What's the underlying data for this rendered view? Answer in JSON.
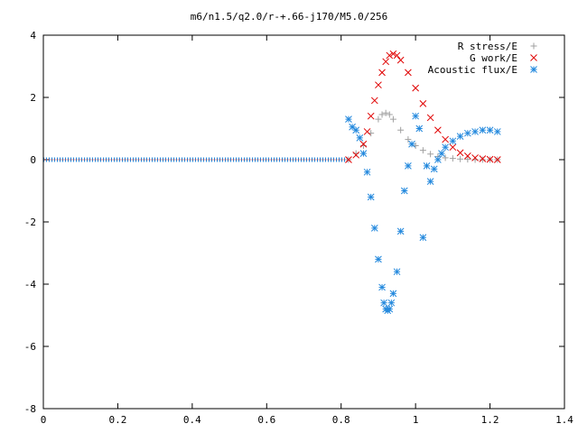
{
  "chart_data": {
    "type": "scatter",
    "title": "m6/n1.5/q2.0/r-+.66-j170/M5.0/256",
    "xlabel": "",
    "ylabel": "",
    "xlim": [
      0,
      1.4
    ],
    "ylim": [
      -8,
      4
    ],
    "xticks": [
      "0",
      "0.2",
      "0.4",
      "0.6",
      "0.8",
      "1",
      "1.2",
      "1.4"
    ],
    "yticks": [
      "-8",
      "-6",
      "-4",
      "-2",
      "0",
      "2",
      "4"
    ],
    "grid": false,
    "legend_position": "top-right",
    "series": [
      {
        "name": "R stress/E",
        "marker": "plus",
        "color": "#a0a0a0",
        "x": [
          0.82,
          0.84,
          0.86,
          0.88,
          0.9,
          0.91,
          0.92,
          0.93,
          0.94,
          0.96,
          0.98,
          1.0,
          1.02,
          1.04,
          1.06,
          1.08,
          1.1,
          1.12,
          1.14,
          1.16,
          1.18,
          1.2,
          1.22
        ],
        "y": [
          0.0,
          0.2,
          0.45,
          0.85,
          1.3,
          1.45,
          1.5,
          1.45,
          1.3,
          0.95,
          0.65,
          0.45,
          0.3,
          0.18,
          0.1,
          0.06,
          0.04,
          0.02,
          0.01,
          0.0,
          0.0,
          0.0,
          0.0
        ]
      },
      {
        "name": "G work/E",
        "marker": "cross",
        "color": "#e00000",
        "x": [
          0.82,
          0.84,
          0.86,
          0.87,
          0.88,
          0.89,
          0.9,
          0.91,
          0.92,
          0.93,
          0.94,
          0.95,
          0.96,
          0.98,
          1.0,
          1.02,
          1.04,
          1.06,
          1.08,
          1.1,
          1.12,
          1.14,
          1.16,
          1.18,
          1.2,
          1.22
        ],
        "y": [
          0.0,
          0.15,
          0.5,
          0.9,
          1.4,
          1.9,
          2.4,
          2.8,
          3.15,
          3.35,
          3.4,
          3.35,
          3.2,
          2.8,
          2.3,
          1.8,
          1.35,
          0.95,
          0.65,
          0.4,
          0.22,
          0.12,
          0.06,
          0.03,
          0.01,
          0.0
        ]
      },
      {
        "name": "Acoustic flux/E",
        "marker": "star",
        "color": "#2288dd",
        "x": [
          0.82,
          0.83,
          0.84,
          0.85,
          0.86,
          0.87,
          0.88,
          0.89,
          0.9,
          0.91,
          0.915,
          0.92,
          0.925,
          0.93,
          0.935,
          0.94,
          0.95,
          0.96,
          0.97,
          0.98,
          0.99,
          1.0,
          1.01,
          1.02,
          1.03,
          1.04,
          1.05,
          1.06,
          1.07,
          1.08,
          1.1,
          1.12,
          1.14,
          1.16,
          1.18,
          1.2,
          1.22
        ],
        "y": [
          1.3,
          1.05,
          0.95,
          0.7,
          0.2,
          -0.4,
          -1.2,
          -2.2,
          -3.2,
          -4.1,
          -4.6,
          -4.8,
          -4.85,
          -4.8,
          -4.6,
          -4.3,
          -3.6,
          -2.3,
          -1.0,
          -0.2,
          0.5,
          1.4,
          1.0,
          -2.5,
          -0.2,
          -0.7,
          -0.3,
          0.0,
          0.2,
          0.4,
          0.6,
          0.75,
          0.85,
          0.9,
          0.95,
          0.95,
          0.9
        ]
      }
    ]
  }
}
